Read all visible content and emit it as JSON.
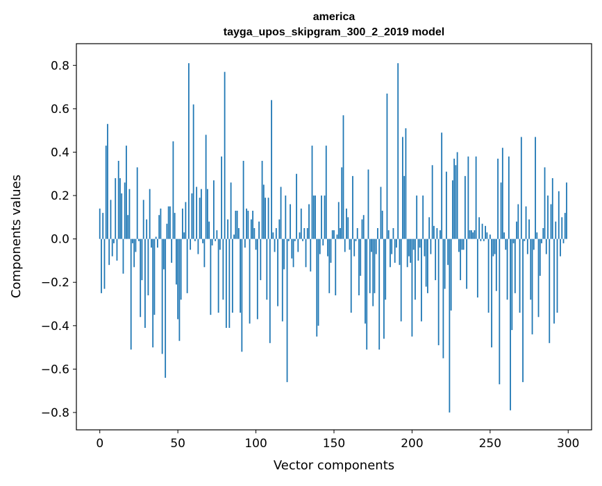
{
  "chart_data": {
    "type": "bar",
    "title": "america",
    "subtitle": "tayga_upos_skipgram_300_2_2019 model",
    "xlabel": "Vector components",
    "ylabel": "Components values",
    "xlim": [
      -15,
      315
    ],
    "ylim": [
      -0.88,
      0.9
    ],
    "xticks": [
      0,
      50,
      100,
      150,
      200,
      250,
      300
    ],
    "yticks": [
      -0.8,
      -0.6,
      -0.4,
      -0.2,
      0.0,
      0.2,
      0.4,
      0.6,
      0.8
    ],
    "xtick_labels": [
      "0",
      "50",
      "100",
      "150",
      "200",
      "250",
      "300"
    ],
    "ytick_labels": [
      "−0.8",
      "−0.6",
      "−0.4",
      "−0.2",
      "0.0",
      "0.2",
      "0.4",
      "0.6",
      "0.8"
    ],
    "bar_color": "#1f77b4",
    "values": [
      0.14,
      -0.25,
      0.12,
      -0.23,
      0.43,
      0.53,
      -0.12,
      0.18,
      -0.08,
      -0.02,
      0.28,
      -0.1,
      0.36,
      0.28,
      0.21,
      -0.16,
      0.26,
      0.43,
      0.11,
      0.23,
      -0.51,
      -0.02,
      -0.13,
      -0.06,
      0.33,
      -0.01,
      -0.36,
      -0.19,
      0.18,
      -0.41,
      0.09,
      -0.26,
      0.23,
      -0.04,
      -0.5,
      -0.35,
      0.01,
      -0.04,
      0.11,
      0.14,
      -0.53,
      -0.14,
      -0.64,
      0.07,
      0.15,
      0.15,
      -0.11,
      0.45,
      0.12,
      -0.21,
      -0.37,
      -0.47,
      -0.28,
      0.14,
      0.03,
      0.17,
      -0.25,
      0.81,
      -0.05,
      0.21,
      0.62,
      -0.01,
      0.24,
      -0.07,
      0.19,
      0.23,
      -0.02,
      -0.13,
      0.48,
      0.23,
      0.08,
      -0.35,
      -0.03,
      0.27,
      -0.01,
      0.04,
      -0.34,
      -0.05,
      0.38,
      -0.28,
      0.77,
      -0.41,
      0.09,
      -0.41,
      0.26,
      -0.34,
      0.02,
      0.13,
      0.13,
      0.05,
      -0.34,
      -0.52,
      0.36,
      -0.04,
      0.14,
      0.13,
      -0.39,
      0.09,
      0.13,
      0.05,
      -0.05,
      -0.37,
      0.08,
      -0.19,
      0.36,
      0.25,
      0.19,
      -0.28,
      0.19,
      -0.48,
      0.64,
      0.03,
      -0.06,
      0.05,
      -0.31,
      0.09,
      0.24,
      -0.38,
      -0.14,
      0.2,
      -0.66,
      -0.01,
      0.16,
      -0.09,
      -0.13,
      -0.01,
      0.3,
      -0.06,
      0.03,
      0.14,
      -0.01,
      0.05,
      -0.13,
      0.05,
      0.16,
      -0.15,
      0.43,
      0.2,
      0.2,
      -0.45,
      -0.4,
      -0.07,
      0.2,
      -0.03,
      0.2,
      0.43,
      -0.08,
      -0.25,
      -0.11,
      0.04,
      0.04,
      -0.26,
      0.02,
      0.17,
      0.05,
      0.33,
      0.57,
      -0.06,
      0.14,
      0.1,
      -0.05,
      -0.34,
      0.29,
      -0.08,
      -0.01,
      0.05,
      -0.26,
      -0.17,
      0.09,
      0.11,
      -0.39,
      -0.51,
      0.32,
      -0.25,
      -0.06,
      -0.31,
      -0.25,
      -0.07,
      0.05,
      -0.51,
      0.24,
      0.13,
      -0.46,
      -0.28,
      0.67,
      0.04,
      -0.13,
      -0.07,
      0.05,
      -0.11,
      -0.04,
      0.81,
      -0.12,
      -0.38,
      0.47,
      0.29,
      0.51,
      -0.13,
      -0.08,
      -0.11,
      -0.45,
      -0.05,
      -0.28,
      0.2,
      -0.1,
      -0.04,
      -0.38,
      0.2,
      -0.08,
      -0.22,
      -0.25,
      0.1,
      -0.07,
      0.34,
      0.06,
      -0.19,
      0.05,
      -0.49,
      0.04,
      0.49,
      -0.55,
      -0.23,
      0.31,
      -0.12,
      -0.8,
      -0.33,
      0.27,
      0.37,
      0.34,
      0.4,
      -0.06,
      -0.19,
      -0.05,
      -0.05,
      0.29,
      -0.23,
      0.38,
      0.04,
      0.04,
      0.03,
      0.04,
      0.38,
      -0.27,
      0.1,
      -0.01,
      0.07,
      -0.01,
      0.06,
      0.03,
      -0.34,
      0.02,
      -0.5,
      -0.08,
      -0.07,
      -0.24,
      0.37,
      -0.67,
      0.26,
      0.42,
      0.03,
      -0.05,
      -0.28,
      0.38,
      -0.79,
      -0.42,
      -0.02,
      -0.25,
      0.08,
      0.16,
      -0.34,
      0.47,
      -0.66,
      -0.01,
      0.15,
      -0.07,
      0.09,
      -0.28,
      -0.44,
      -0.05,
      0.47,
      0.03,
      -0.36,
      -0.17,
      -0.02,
      0.05,
      0.33,
      -0.07,
      0.2,
      -0.48,
      0.16,
      0.28,
      -0.39,
      0.08,
      -0.34,
      0.22,
      -0.08,
      0.1,
      -0.02,
      0.12,
      0.26
    ]
  }
}
